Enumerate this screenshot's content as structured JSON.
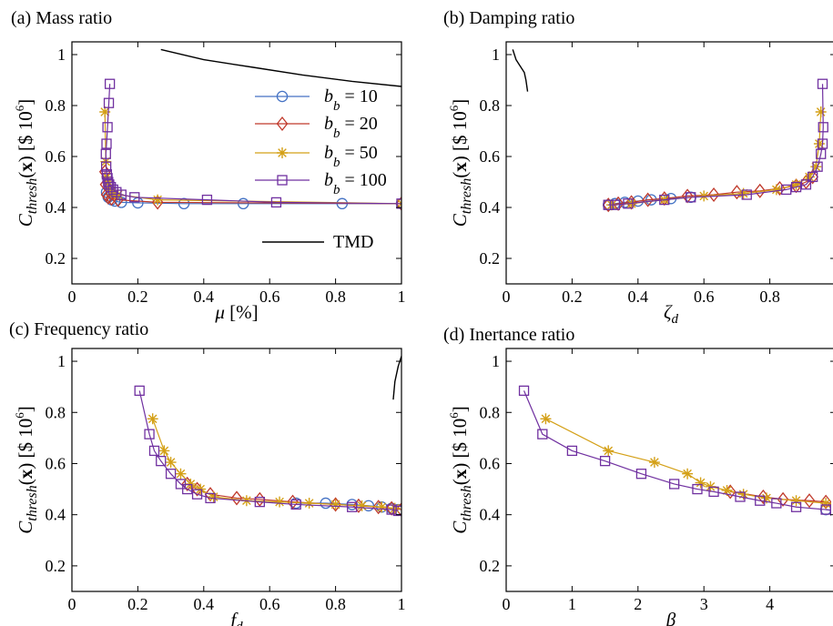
{
  "figure": {
    "y_axis_label": "C_thresh(x) [$ 10^6]",
    "legend_sub": "b"
  },
  "chart_data": [
    {
      "type": "line",
      "title": "(a) Mass ratio",
      "xlabel": "μ [%]",
      "ylabel": "C_thresh(x) [$ 10^6]",
      "xlim": [
        0,
        1
      ],
      "ylim": [
        0.1,
        1.05
      ],
      "xticks": [
        0,
        0.2,
        0.4,
        0.6,
        0.8,
        1
      ],
      "xtick_labels": [
        "0",
        "0.2",
        "0.4",
        "0.6",
        "0.8",
        "1"
      ],
      "yticks": [
        0.2,
        0.4,
        0.6,
        0.8,
        1
      ],
      "ytick_labels": [
        "0.2",
        "0.4",
        "0.6",
        "0.8",
        "1"
      ],
      "grid": false,
      "legend_position": "top-right",
      "series": [
        {
          "name": "b_b = 10",
          "legend_text": "= 10",
          "color": "#4472c4",
          "marker": "circle",
          "x": [
            0.105,
            0.11,
            0.12,
            0.13,
            0.15,
            0.2,
            0.34,
            0.52,
            0.82,
            1.0
          ],
          "y": [
            0.46,
            0.44,
            0.43,
            0.425,
            0.42,
            0.418,
            0.415,
            0.415,
            0.415,
            0.415
          ]
        },
        {
          "name": "b_b = 20",
          "legend_text": "= 20",
          "color": "#c0392b",
          "marker": "diamond",
          "x": [
            0.1,
            0.102,
            0.105,
            0.11,
            0.12,
            0.14,
            0.26,
            1.0
          ],
          "y": [
            0.54,
            0.49,
            0.45,
            0.44,
            0.435,
            0.43,
            0.42,
            0.415
          ]
        },
        {
          "name": "b_b = 50",
          "legend_text": "= 50",
          "color": "#d4a017",
          "marker": "star",
          "x": [
            0.1,
            0.103,
            0.106,
            0.11,
            0.115,
            0.12,
            0.13,
            0.14,
            0.26,
            1.0
          ],
          "y": [
            0.775,
            0.58,
            0.52,
            0.5,
            0.48,
            0.465,
            0.455,
            0.45,
            0.43,
            0.415
          ]
        },
        {
          "name": "b_b = 100",
          "legend_text": "= 100",
          "color": "#7030a0",
          "marker": "square",
          "x": [
            0.115,
            0.112,
            0.108,
            0.105,
            0.103,
            0.104,
            0.106,
            0.108,
            0.11,
            0.113,
            0.118,
            0.125,
            0.135,
            0.15,
            0.19,
            0.41,
            0.62,
            1.0
          ],
          "y": [
            0.885,
            0.81,
            0.715,
            0.65,
            0.61,
            0.56,
            0.53,
            0.515,
            0.5,
            0.49,
            0.48,
            0.47,
            0.46,
            0.45,
            0.44,
            0.43,
            0.42,
            0.415
          ]
        },
        {
          "name": "TMD",
          "legend_text": "TMD",
          "color": "#000000",
          "marker": "none",
          "x": [
            0.27,
            0.4,
            0.55,
            0.7,
            0.85,
            1.0
          ],
          "y": [
            1.02,
            0.98,
            0.95,
            0.92,
            0.895,
            0.875
          ]
        }
      ]
    },
    {
      "type": "line",
      "title": "(b) Damping ratio",
      "xlabel": "ζ_d",
      "ylabel": "C_thresh(x) [$ 10^6]",
      "xlim": [
        0,
        1
      ],
      "ylim": [
        0.1,
        1.05
      ],
      "xticks": [
        0,
        0.2,
        0.4,
        0.6,
        0.8
      ],
      "xtick_labels": [
        "0",
        "0.2",
        "0.4",
        "0.6",
        "0.8"
      ],
      "yticks": [
        0.2,
        0.4,
        0.6,
        0.8,
        1
      ],
      "ytick_labels": [
        "0.2",
        "0.4",
        "0.6",
        "0.8",
        "1"
      ],
      "grid": false,
      "series": [
        {
          "name": "b_b = 10",
          "color": "#4472c4",
          "marker": "circle",
          "x": [
            0.31,
            0.33,
            0.36,
            0.4,
            0.44,
            0.5,
            0.56
          ],
          "y": [
            0.41,
            0.415,
            0.42,
            0.425,
            0.43,
            0.435,
            0.44
          ]
        },
        {
          "name": "b_b = 20",
          "color": "#c0392b",
          "marker": "diamond",
          "x": [
            0.31,
            0.34,
            0.38,
            0.43,
            0.48,
            0.55,
            0.63,
            0.7,
            0.77,
            0.83,
            0.88,
            0.91,
            0.93
          ],
          "y": [
            0.41,
            0.415,
            0.42,
            0.43,
            0.435,
            0.445,
            0.45,
            0.46,
            0.465,
            0.475,
            0.485,
            0.5,
            0.52
          ]
        },
        {
          "name": "b_b = 50",
          "color": "#d4a017",
          "marker": "star",
          "x": [
            0.32,
            0.38,
            0.48,
            0.6,
            0.72,
            0.82,
            0.88,
            0.92,
            0.94,
            0.95,
            0.955
          ],
          "y": [
            0.41,
            0.415,
            0.43,
            0.445,
            0.455,
            0.47,
            0.49,
            0.52,
            0.56,
            0.65,
            0.775
          ]
        },
        {
          "name": "b_b = 100",
          "color": "#7030a0",
          "marker": "square",
          "x": [
            0.31,
            0.33,
            0.37,
            0.48,
            0.56,
            0.73,
            0.85,
            0.88,
            0.91,
            0.93,
            0.945,
            0.955,
            0.96,
            0.962,
            0.96
          ],
          "y": [
            0.41,
            0.41,
            0.415,
            0.43,
            0.44,
            0.45,
            0.47,
            0.48,
            0.49,
            0.52,
            0.56,
            0.61,
            0.65,
            0.715,
            0.885
          ]
        },
        {
          "name": "TMD",
          "color": "#000000",
          "marker": "none",
          "x": [
            0.02,
            0.03,
            0.04,
            0.055,
            0.06,
            0.065
          ],
          "y": [
            1.02,
            0.98,
            0.96,
            0.93,
            0.9,
            0.855
          ]
        }
      ]
    },
    {
      "type": "line",
      "title": "(c) Frequency ratio",
      "xlabel": "f_d",
      "ylabel": "C_thresh(x) [$ 10^6]",
      "xlim": [
        0,
        1
      ],
      "ylim": [
        0.1,
        1.05
      ],
      "xticks": [
        0,
        0.2,
        0.4,
        0.6,
        0.8,
        1
      ],
      "xtick_labels": [
        "0",
        "0.2",
        "0.4",
        "0.6",
        "0.8",
        "1"
      ],
      "yticks": [
        0.2,
        0.4,
        0.6,
        0.8,
        1
      ],
      "ytick_labels": [
        "0.2",
        "0.4",
        "0.6",
        "0.8",
        "1"
      ],
      "grid": false,
      "series": [
        {
          "name": "b_b = 10",
          "color": "#4472c4",
          "marker": "circle",
          "x": [
            0.68,
            0.77,
            0.85,
            0.9,
            0.94,
            0.97,
            0.99
          ],
          "y": [
            0.445,
            0.445,
            0.44,
            0.435,
            0.43,
            0.425,
            0.42
          ]
        },
        {
          "name": "b_b = 20",
          "color": "#c0392b",
          "marker": "diamond",
          "x": [
            0.35,
            0.38,
            0.42,
            0.5,
            0.57,
            0.67,
            0.8,
            0.87,
            0.93,
            0.97,
            1.0
          ],
          "y": [
            0.52,
            0.5,
            0.48,
            0.465,
            0.46,
            0.45,
            0.44,
            0.435,
            0.43,
            0.425,
            0.42
          ]
        },
        {
          "name": "b_b = 50",
          "color": "#d4a017",
          "marker": "star",
          "x": [
            0.245,
            0.28,
            0.3,
            0.33,
            0.36,
            0.39,
            0.43,
            0.53,
            0.63,
            0.72,
            0.8,
            0.88,
            0.94,
            0.98
          ],
          "y": [
            0.775,
            0.65,
            0.605,
            0.56,
            0.52,
            0.5,
            0.47,
            0.455,
            0.45,
            0.445,
            0.44,
            0.435,
            0.43,
            0.425
          ]
        },
        {
          "name": "b_b = 100",
          "color": "#7030a0",
          "marker": "square",
          "x": [
            0.205,
            0.235,
            0.25,
            0.27,
            0.3,
            0.33,
            0.35,
            0.38,
            0.42,
            0.57,
            0.68,
            0.85,
            0.97,
            0.99
          ],
          "y": [
            0.885,
            0.715,
            0.65,
            0.61,
            0.56,
            0.52,
            0.5,
            0.48,
            0.465,
            0.45,
            0.44,
            0.43,
            0.42,
            0.415
          ]
        },
        {
          "name": "TMD",
          "color": "#000000",
          "marker": "none",
          "x": [
            0.975,
            0.98,
            0.99,
            1.0
          ],
          "y": [
            0.85,
            0.92,
            0.98,
            1.02
          ]
        }
      ]
    },
    {
      "type": "line",
      "title": "(d) Inertance ratio",
      "xlabel": "β",
      "ylabel": "C_thresh(x) [$ 10^6]",
      "xlim": [
        0,
        5
      ],
      "ylim": [
        0.1,
        1.05
      ],
      "xticks": [
        0,
        1,
        2,
        3,
        4
      ],
      "xtick_labels": [
        "0",
        "1",
        "2",
        "3",
        "4"
      ],
      "yticks": [
        0.2,
        0.4,
        0.6,
        0.8,
        1
      ],
      "ytick_labels": [
        "0.2",
        "0.4",
        "0.6",
        "0.8",
        "1"
      ],
      "grid": false,
      "series": [
        {
          "name": "b_b = 10",
          "color": "#4472c4",
          "marker": "circle",
          "x": [
            4.85,
            5.0
          ],
          "y": [
            0.42,
            0.415
          ]
        },
        {
          "name": "b_b = 20",
          "color": "#c0392b",
          "marker": "diamond",
          "x": [
            3.4,
            3.9,
            4.2,
            4.6,
            4.85,
            5.0
          ],
          "y": [
            0.49,
            0.47,
            0.46,
            0.455,
            0.45,
            0.44
          ]
        },
        {
          "name": "b_b = 50",
          "color": "#d4a017",
          "marker": "star",
          "x": [
            0.6,
            1.55,
            2.25,
            2.75,
            2.95,
            3.1,
            3.35,
            3.6,
            3.95,
            4.4,
            4.85
          ],
          "y": [
            0.775,
            0.65,
            0.605,
            0.56,
            0.525,
            0.51,
            0.495,
            0.48,
            0.465,
            0.455,
            0.445
          ]
        },
        {
          "name": "b_b = 100",
          "color": "#7030a0",
          "marker": "square",
          "x": [
            0.27,
            0.55,
            1.0,
            1.5,
            2.05,
            2.55,
            2.9,
            3.15,
            3.55,
            3.85,
            4.1,
            4.4,
            4.85,
            5.0
          ],
          "y": [
            0.885,
            0.715,
            0.65,
            0.61,
            0.56,
            0.52,
            0.5,
            0.49,
            0.47,
            0.455,
            0.445,
            0.43,
            0.42,
            0.415
          ]
        }
      ]
    }
  ]
}
